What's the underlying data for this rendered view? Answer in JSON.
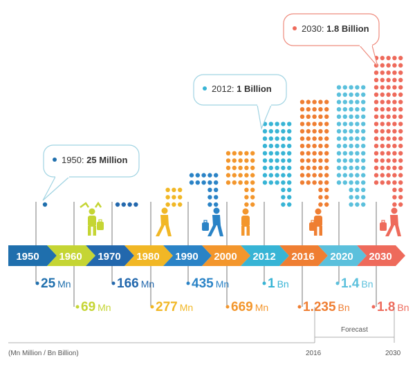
{
  "chart_data": {
    "type": "infographic-timeline",
    "unit_note": "(Mn Million / Bn Billion)",
    "forecast_label": "Forecast",
    "forecast_start_label": "2016",
    "forecast_end_label": "2030",
    "points": [
      {
        "year": "1950",
        "value_num": "25",
        "value_unit": "Mn",
        "color": "#1f6fad",
        "row": "upper"
      },
      {
        "year": "1960",
        "value_num": "69",
        "value_unit": "Mn",
        "color": "#c5d534",
        "row": "lower"
      },
      {
        "year": "1970",
        "value_num": "166",
        "value_unit": "Mn",
        "color": "#2368ad",
        "row": "upper"
      },
      {
        "year": "1980",
        "value_num": "277",
        "value_unit": "Mn",
        "color": "#f1b725",
        "row": "lower"
      },
      {
        "year": "1990",
        "value_num": "435",
        "value_unit": "Mn",
        "color": "#2a83c6",
        "row": "upper"
      },
      {
        "year": "2000",
        "value_num": "669",
        "value_unit": "Mn",
        "color": "#f3962c",
        "row": "lower"
      },
      {
        "year": "2012",
        "value_num": "1",
        "value_unit": "Bn",
        "color": "#37b4d5",
        "row": "upper"
      },
      {
        "year": "2016",
        "value_num": "1.235",
        "value_unit": "Bn",
        "color": "#ef7e32",
        "row": "lower"
      },
      {
        "year": "2020",
        "value_num": "1.4",
        "value_unit": "Bn",
        "color": "#5bc0dc",
        "row": "upper"
      },
      {
        "year": "2030",
        "value_num": "1.8",
        "value_unit": "Bn",
        "color": "#ee6a5b",
        "row": "lower"
      }
    ],
    "callouts": [
      {
        "year_text": "1950:",
        "value_text": "25 Million",
        "color": "#1f6fad"
      },
      {
        "year_text": "2012:",
        "value_text": "1 Billion",
        "color": "#37b4d5"
      },
      {
        "year_text": "2030:",
        "value_text": "1.8 Billion",
        "color": "#ee6a5b"
      }
    ]
  },
  "colors": {
    "line": "#555555",
    "callout_border": "#9fd3e2",
    "callout_border_red": "#ee8a7c"
  },
  "icons": [
    "person-icon",
    "family-icon",
    "walking-icon",
    "traveler-icon",
    "standing-person-icon",
    "suitcase-traveler-icon"
  ]
}
